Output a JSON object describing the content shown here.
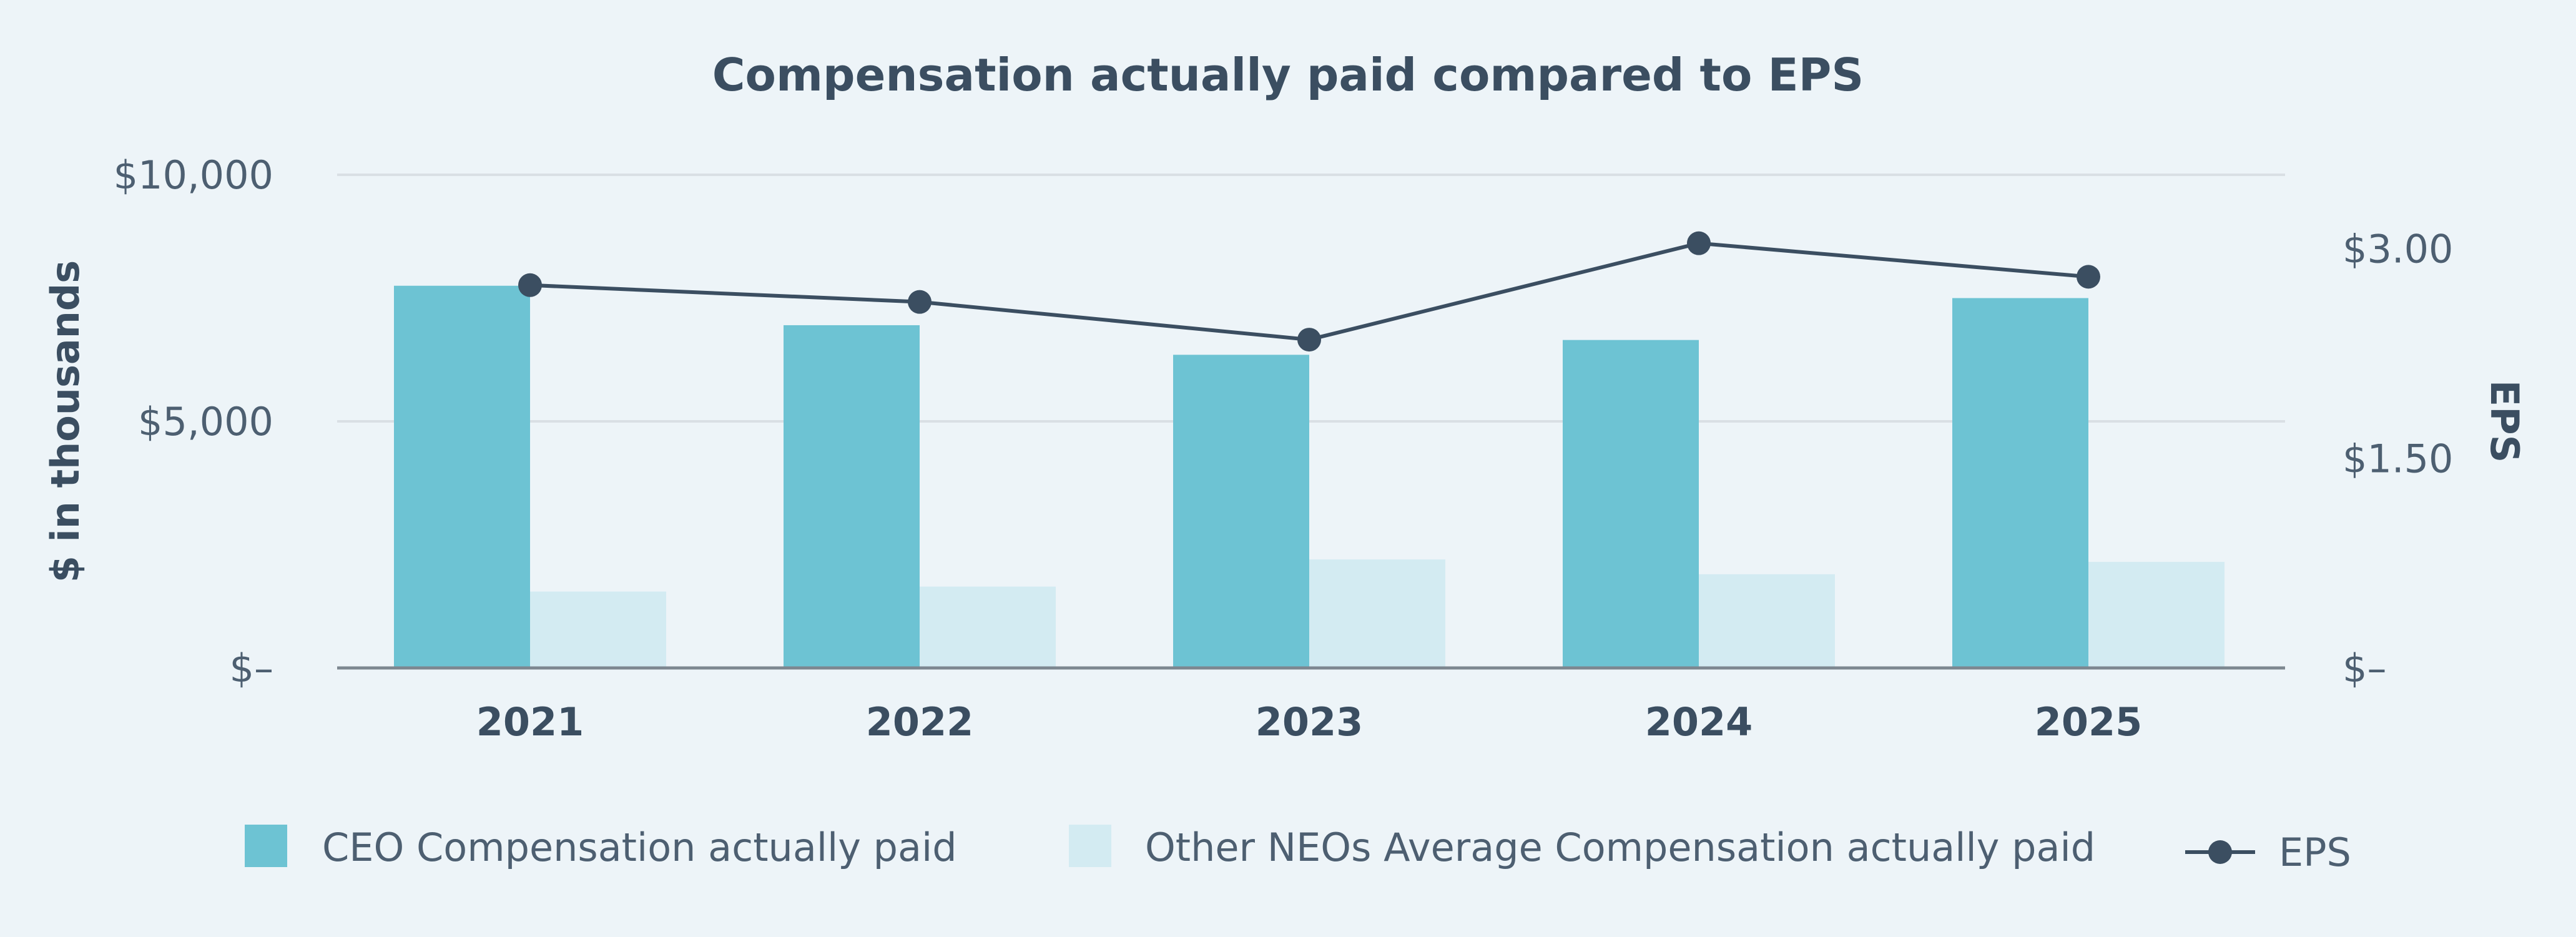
{
  "chart_data": {
    "type": "bar",
    "title": "Compensation actually paid compared to EPS",
    "categories": [
      "2021",
      "2022",
      "2023",
      "2024",
      "2025"
    ],
    "ylabel": "$ in thousands",
    "y2label": "EPS",
    "ylim": [
      0,
      10000
    ],
    "y2lim": [
      0,
      3.53
    ],
    "yticks": [
      {
        "value": 0,
        "label": "$–"
      },
      {
        "value": 5000,
        "label": "$5,000"
      },
      {
        "value": 10000,
        "label": "$10,000"
      }
    ],
    "y2ticks": [
      {
        "value": 0,
        "label": "$–"
      },
      {
        "value": 1.5,
        "label": "$1.50"
      },
      {
        "value": 3.0,
        "label": "$3.00"
      }
    ],
    "grid": true,
    "legend_position": "bottom",
    "series": [
      {
        "name": "CEO Compensation actually paid",
        "kind": "bar",
        "axis": "left",
        "color": "#6dc3d3",
        "values": [
          7750,
          6950,
          6350,
          6650,
          7500
        ]
      },
      {
        "name": "Other NEOs Average Compensation actually paid",
        "kind": "bar",
        "axis": "left",
        "color": "#d3ebf2",
        "values": [
          1550,
          1650,
          2200,
          1900,
          2150
        ]
      },
      {
        "name": "EPS",
        "kind": "line",
        "axis": "right",
        "color": "#3b4e61",
        "values": [
          2.74,
          2.62,
          2.35,
          3.04,
          2.8
        ]
      }
    ]
  }
}
